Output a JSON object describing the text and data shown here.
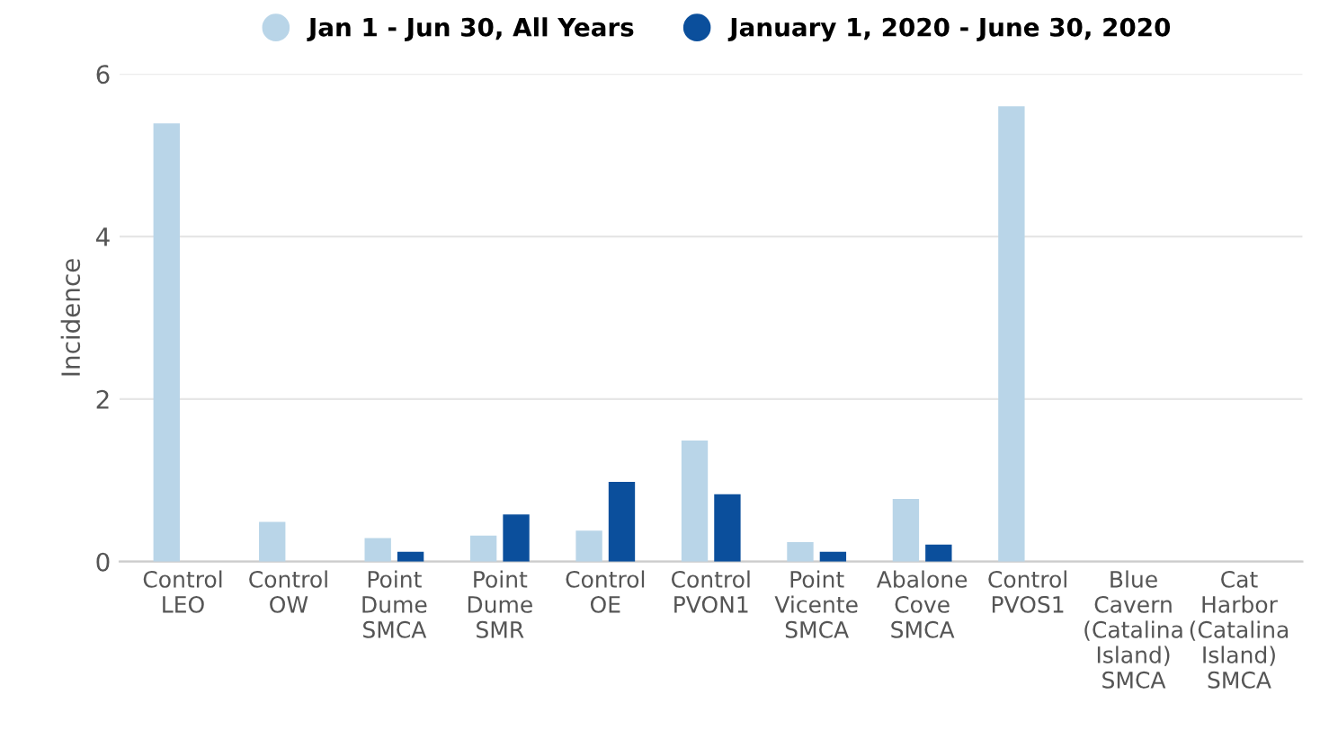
{
  "chart_data": {
    "type": "bar",
    "ylabel": "Incidence",
    "categories": [
      "Control\nLEO",
      "Control\nOW",
      "Point\nDume\nSMCA",
      "Point\nDume\nSMR",
      "Control\nOE",
      "Control\nPVON1",
      "Point\nVicente\nSMCA",
      "Abalone\nCove\nSMCA",
      "Control\nPVOS1",
      "Blue\nCavern\n(Catalina\nIsland)\nSMCA",
      "Cat\nHarbor\n(Catalina\nIsland)\nSMCA"
    ],
    "series": [
      {
        "name": "Jan 1 - Jun 30, All Years",
        "color": "#b9d5e8",
        "values": [
          5.39,
          0.49,
          0.29,
          0.32,
          0.38,
          1.49,
          0.24,
          0.77,
          5.6,
          null,
          null
        ]
      },
      {
        "name": "January 1, 2020 - June 30, 2020",
        "color": "#0b4f9c",
        "values": [
          null,
          null,
          0.12,
          0.58,
          0.98,
          0.83,
          0.12,
          0.21,
          null,
          null,
          null
        ]
      }
    ],
    "ylim": [
      0,
      6
    ],
    "yticks": [
      0,
      2,
      4,
      6
    ],
    "grid": "y",
    "legend": "top"
  }
}
